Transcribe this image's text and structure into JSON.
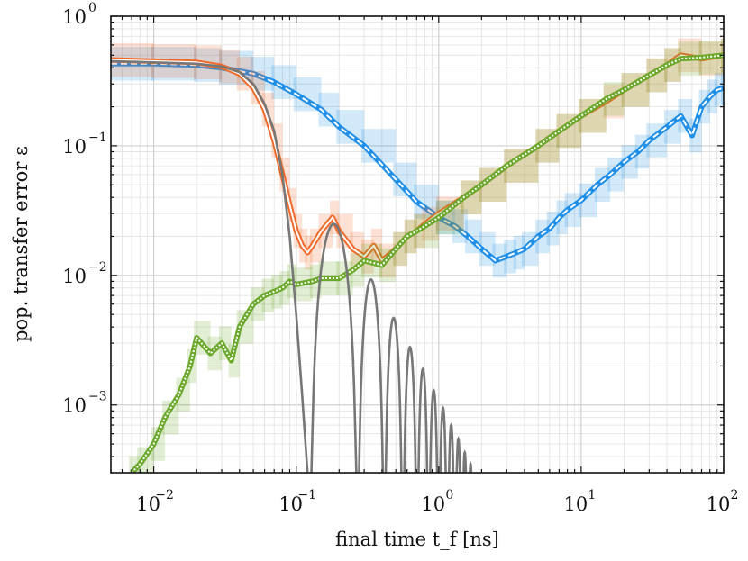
{
  "chart_data": {
    "type": "line",
    "xlabel": "final time t_f [ns]",
    "ylabel": "pop. transfer error ε",
    "xscale": "log",
    "yscale": "log",
    "xlim": [
      0.005,
      100
    ],
    "ylim": [
      0.0003,
      1
    ],
    "grid": true,
    "legend": "none",
    "x_ticks": [
      {
        "base": "10",
        "exp": "−2",
        "value": 0.01
      },
      {
        "base": "10",
        "exp": "−1",
        "value": 0.1
      },
      {
        "base": "10",
        "exp": "0",
        "value": 1
      },
      {
        "base": "10",
        "exp": "1",
        "value": 10
      },
      {
        "base": "10",
        "exp": "2",
        "value": 100
      }
    ],
    "y_ticks": [
      {
        "base": "10",
        "exp": "−3",
        "value": 0.001
      },
      {
        "base": "10",
        "exp": "−2",
        "value": 0.01
      },
      {
        "base": "10",
        "exp": "−1",
        "value": 0.1
      },
      {
        "base": "10",
        "exp": "0",
        "value": 1
      }
    ],
    "colors": {
      "blue": "#1f8fe8",
      "orange": "#ee6a2a",
      "green": "#6aa82a",
      "gray": "#777777"
    },
    "series": [
      {
        "color": "blue",
        "style": "solid line with dashed white center, light band",
        "x": [
          0.005,
          0.01,
          0.02,
          0.03,
          0.05,
          0.07,
          0.1,
          0.15,
          0.2,
          0.3,
          0.5,
          0.7,
          1,
          1.3,
          1.6,
          2,
          2.5,
          3,
          3.5,
          4,
          5,
          6,
          7,
          8,
          10,
          13,
          16,
          20,
          25,
          30,
          40,
          50,
          60,
          70,
          80,
          90,
          100
        ],
        "y": [
          0.43,
          0.43,
          0.42,
          0.4,
          0.36,
          0.31,
          0.25,
          0.19,
          0.14,
          0.1,
          0.055,
          0.037,
          0.028,
          0.024,
          0.02,
          0.016,
          0.013,
          0.014,
          0.015,
          0.016,
          0.02,
          0.023,
          0.028,
          0.032,
          0.038,
          0.05,
          0.06,
          0.075,
          0.09,
          0.11,
          0.14,
          0.17,
          0.12,
          0.2,
          0.24,
          0.27,
          0.28
        ]
      },
      {
        "color": "orange",
        "style": "solid line with white center, light band",
        "x": [
          0.005,
          0.01,
          0.02,
          0.03,
          0.04,
          0.05,
          0.06,
          0.07,
          0.08,
          0.09,
          0.1,
          0.11,
          0.12,
          0.13,
          0.15,
          0.18,
          0.2,
          0.25,
          0.3,
          0.35,
          0.4,
          0.5,
          0.6,
          0.7,
          0.8,
          1,
          1.5,
          2,
          3,
          5,
          7,
          10,
          15,
          20,
          30,
          40,
          50,
          70,
          100
        ],
        "y": [
          0.46,
          0.45,
          0.44,
          0.41,
          0.36,
          0.28,
          0.19,
          0.11,
          0.06,
          0.035,
          0.022,
          0.017,
          0.015,
          0.017,
          0.022,
          0.028,
          0.022,
          0.016,
          0.014,
          0.017,
          0.013,
          0.016,
          0.02,
          0.022,
          0.025,
          0.03,
          0.04,
          0.05,
          0.07,
          0.1,
          0.13,
          0.17,
          0.22,
          0.27,
          0.35,
          0.42,
          0.5,
          0.47,
          0.5
        ]
      },
      {
        "color": "green",
        "style": "dotted white center, light band",
        "x": [
          0.007,
          0.008,
          0.01,
          0.012,
          0.015,
          0.018,
          0.02,
          0.025,
          0.03,
          0.035,
          0.04,
          0.05,
          0.06,
          0.07,
          0.08,
          0.09,
          0.1,
          0.13,
          0.15,
          0.2,
          0.25,
          0.3,
          0.4,
          0.5,
          0.6,
          0.7,
          1,
          1.5,
          2,
          3,
          5,
          7,
          10,
          15,
          20,
          30,
          40,
          50,
          70,
          100
        ],
        "y": [
          0.0003,
          0.00035,
          0.0005,
          0.0008,
          0.0012,
          0.002,
          0.0033,
          0.0025,
          0.003,
          0.0022,
          0.004,
          0.006,
          0.007,
          0.0075,
          0.008,
          0.009,
          0.0085,
          0.009,
          0.0095,
          0.0095,
          0.011,
          0.013,
          0.012,
          0.016,
          0.02,
          0.022,
          0.028,
          0.04,
          0.05,
          0.07,
          0.1,
          0.13,
          0.17,
          0.23,
          0.27,
          0.35,
          0.42,
          0.47,
          0.48,
          0.5
        ]
      },
      {
        "color": "gray",
        "style": "solid oscillating line (analytic)",
        "x": [
          0.005,
          0.01,
          0.02,
          0.03,
          0.04,
          0.05,
          0.06,
          0.07,
          0.08,
          0.09,
          0.1,
          0.11,
          0.12
        ],
        "y": [
          0.45,
          0.44,
          0.43,
          0.41,
          0.37,
          0.3,
          0.21,
          0.13,
          0.06,
          0.02,
          0.005,
          0.0012,
          0.0003
        ],
        "lobes": [
          {
            "start": 0.125,
            "end": 0.27,
            "peak": 0.025
          },
          {
            "start": 0.27,
            "end": 0.415,
            "peak": 0.0093
          },
          {
            "start": 0.415,
            "end": 0.56,
            "peak": 0.0047
          },
          {
            "start": 0.56,
            "end": 0.705,
            "peak": 0.0028
          },
          {
            "start": 0.705,
            "end": 0.85,
            "peak": 0.0019
          },
          {
            "start": 0.85,
            "end": 1.0,
            "peak": 0.0013
          },
          {
            "start": 1.0,
            "end": 1.15,
            "peak": 0.00095
          },
          {
            "start": 1.15,
            "end": 1.3,
            "peak": 0.0007
          },
          {
            "start": 1.3,
            "end": 1.45,
            "peak": 0.00055
          },
          {
            "start": 1.45,
            "end": 1.6,
            "peak": 0.00043
          },
          {
            "start": 1.6,
            "end": 1.75,
            "peak": 0.00035
          }
        ]
      }
    ]
  }
}
